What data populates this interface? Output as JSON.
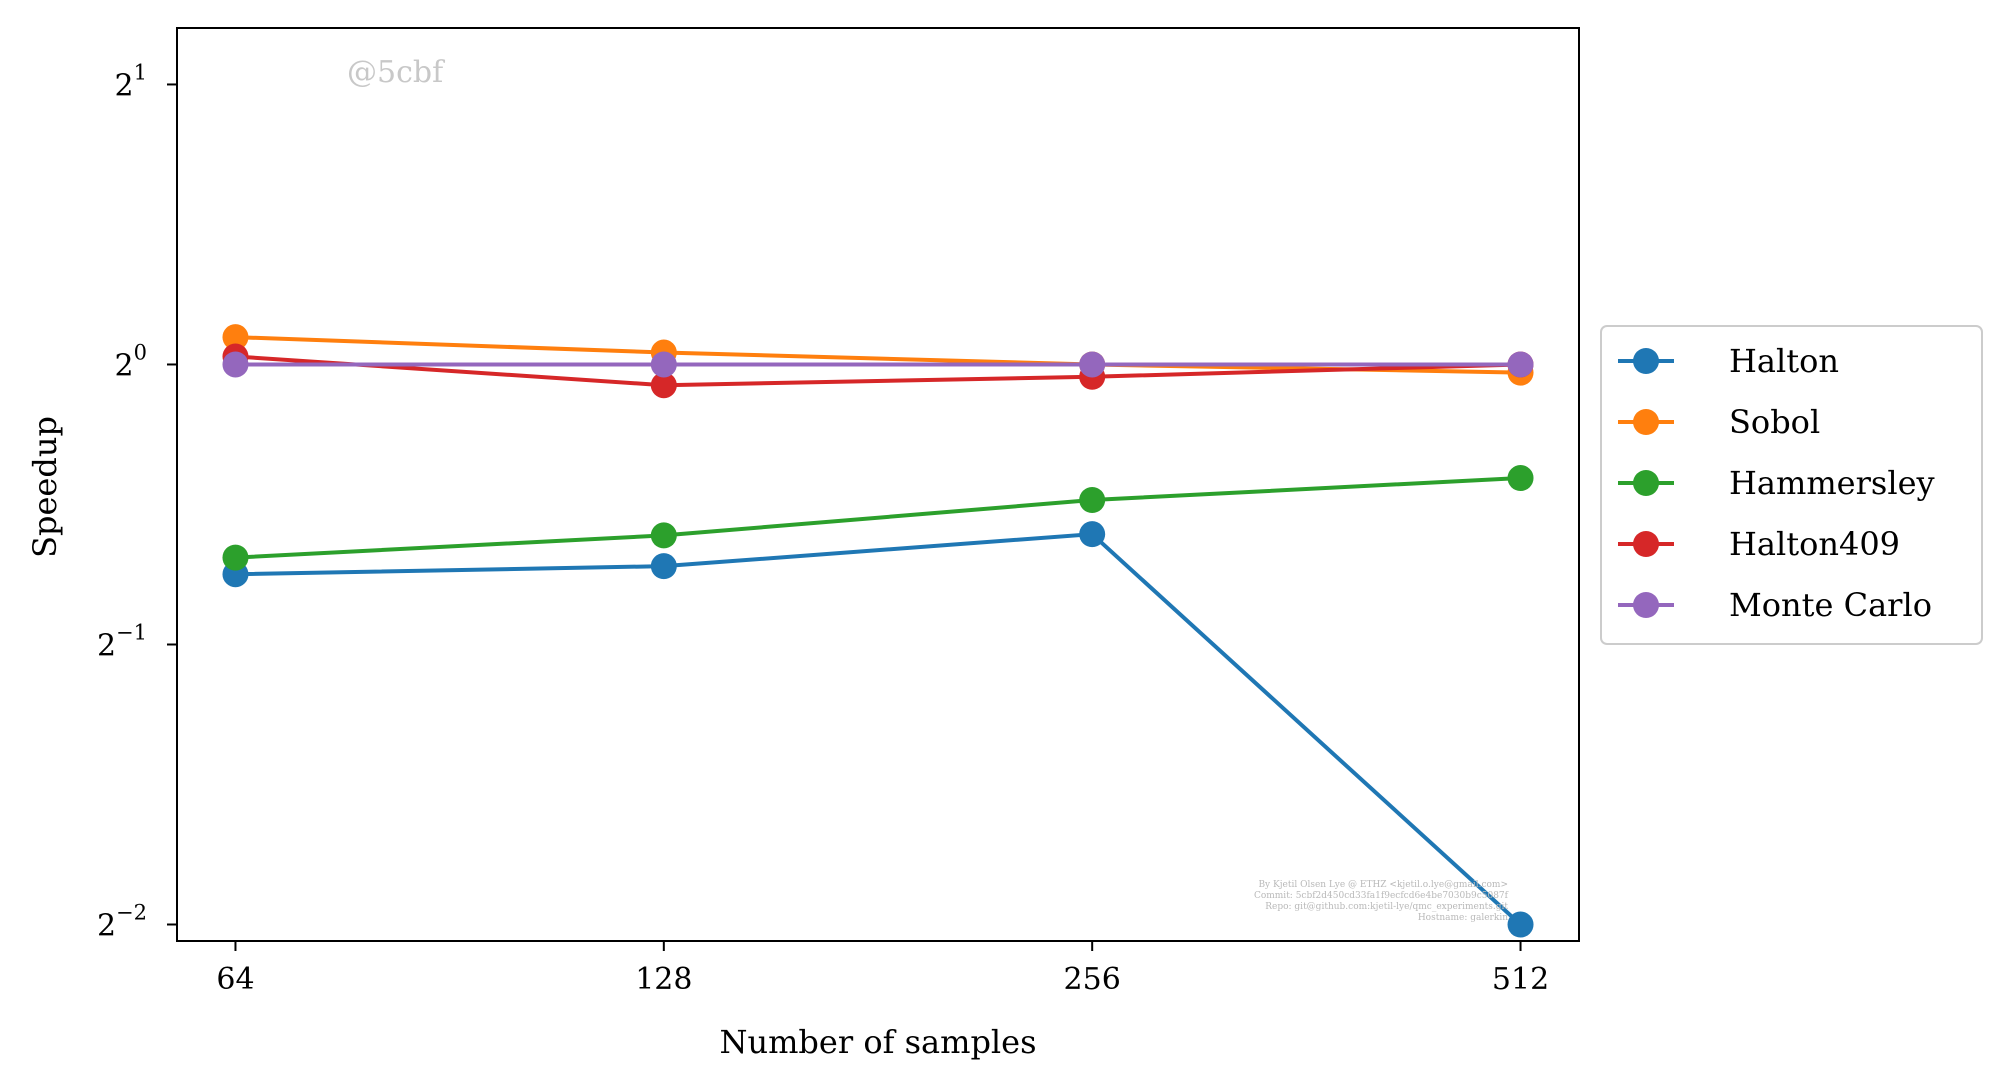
{
  "chart_data": {
    "type": "line",
    "title": "",
    "xlabel": "Number of samples",
    "ylabel": "Speedup",
    "x": [
      64,
      128,
      256,
      512
    ],
    "x_scale": "log2",
    "y_scale": "log2",
    "x_ticks": [
      "64",
      "128",
      "256",
      "512"
    ],
    "y_ticks": [
      {
        "value": 0.25,
        "base": "2",
        "exp": "−2"
      },
      {
        "value": 0.5,
        "base": "2",
        "exp": "−1"
      },
      {
        "value": 1,
        "base": "2",
        "exp": "0"
      },
      {
        "value": 2,
        "base": "2",
        "exp": "1"
      }
    ],
    "ylim": [
      0.24,
      2.3
    ],
    "grid": false,
    "legend_position": "outside-right",
    "series": [
      {
        "name": "Halton",
        "color": "#1f77b4",
        "values": [
          0.595,
          0.607,
          0.657,
          0.25
        ]
      },
      {
        "name": "Sobol",
        "color": "#ff7f0e",
        "values": [
          1.07,
          1.03,
          1.0,
          0.98
        ]
      },
      {
        "name": "Hammersley",
        "color": "#2ca02c",
        "values": [
          0.62,
          0.655,
          0.715,
          0.755
        ]
      },
      {
        "name": "Halton409",
        "color": "#d62728",
        "values": [
          1.02,
          0.95,
          0.97,
          1.0
        ]
      },
      {
        "name": "Monte Carlo",
        "color": "#9467bd",
        "values": [
          1.0,
          1.0,
          1.0,
          1.0
        ]
      }
    ],
    "watermark": "@5cbf",
    "footer_lines": [
      "By Kjetil Olsen Lye @ ETHZ <kjetil.o.lye@gmail.com>",
      "Commit: 5cbf2d450cd33fa1f9ecfcd6e4be7030b9c5087f",
      "Repo: git@github.com:kjetil-lye/qmc_experiments.git",
      "Hostname: galerkin"
    ]
  }
}
